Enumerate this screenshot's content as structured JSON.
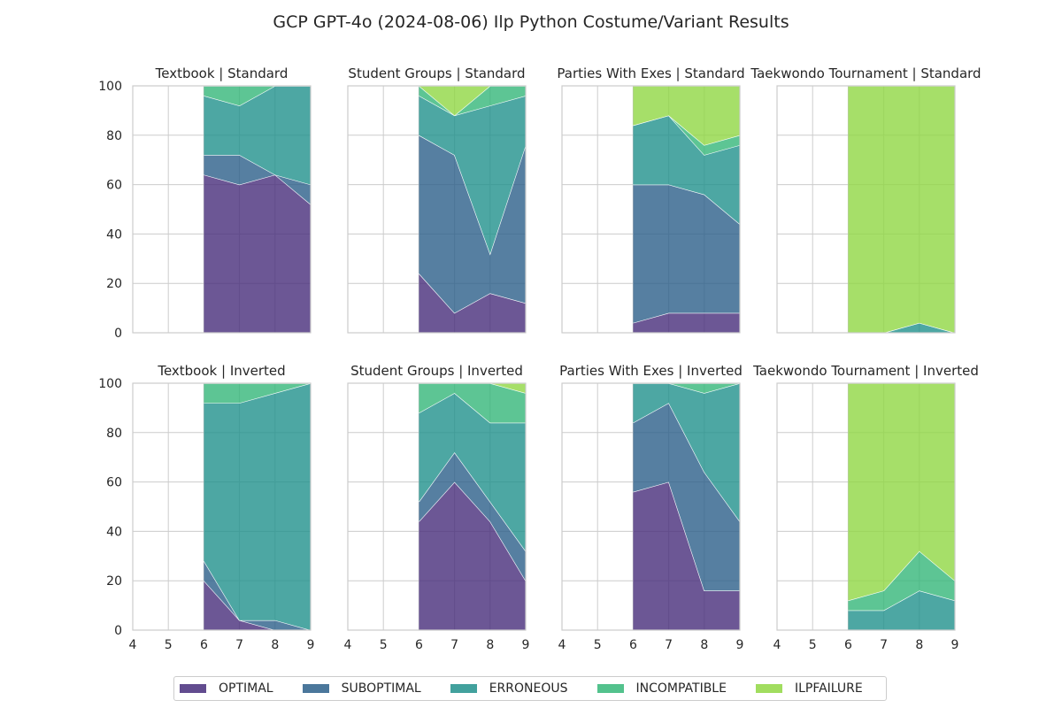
{
  "figure_title": "GCP GPT-4o (2024-08-06) Ilp Python Costume/Variant Results",
  "legend": [
    {
      "label": "OPTIMAL",
      "color": "#472d7b"
    },
    {
      "label": "SUBOPTIMAL",
      "color": "#2c5f8a"
    },
    {
      "label": "ERRONEOUS",
      "color": "#21918c"
    },
    {
      "label": "INCOMPATIBLE",
      "color": "#35b779"
    },
    {
      "label": "ILPFAILURE",
      "color": "#90d743"
    }
  ],
  "chart_data": [
    {
      "type": "area",
      "stacked": true,
      "title": "Textbook | Standard",
      "x": [
        6,
        7,
        8,
        9
      ],
      "xlim": [
        4,
        9
      ],
      "ylim": [
        0,
        100
      ],
      "grid": true,
      "xticks": [
        4,
        5,
        6,
        7,
        8,
        9
      ],
      "yticks": [
        0,
        20,
        40,
        60,
        80,
        100
      ],
      "series": [
        {
          "name": "OPTIMAL",
          "values": [
            64,
            60,
            64,
            52
          ]
        },
        {
          "name": "SUBOPTIMAL",
          "values": [
            8,
            12,
            0,
            8
          ]
        },
        {
          "name": "ERRONEOUS",
          "values": [
            24,
            20,
            36,
            40
          ]
        },
        {
          "name": "INCOMPATIBLE",
          "values": [
            4,
            8,
            0,
            0
          ]
        },
        {
          "name": "ILPFAILURE",
          "values": [
            0,
            0,
            0,
            0
          ]
        }
      ]
    },
    {
      "type": "area",
      "stacked": true,
      "title": "Student Groups | Standard",
      "x": [
        6,
        7,
        8,
        9
      ],
      "xlim": [
        4,
        9
      ],
      "ylim": [
        0,
        100
      ],
      "grid": true,
      "xticks": [
        4,
        5,
        6,
        7,
        8,
        9
      ],
      "yticks": [
        0,
        20,
        40,
        60,
        80,
        100
      ],
      "series": [
        {
          "name": "OPTIMAL",
          "values": [
            24,
            8,
            16,
            12
          ]
        },
        {
          "name": "SUBOPTIMAL",
          "values": [
            56,
            64,
            16,
            64
          ]
        },
        {
          "name": "ERRONEOUS",
          "values": [
            16,
            16,
            60,
            20
          ]
        },
        {
          "name": "INCOMPATIBLE",
          "values": [
            4,
            0,
            8,
            4
          ]
        },
        {
          "name": "ILPFAILURE",
          "values": [
            0,
            12,
            0,
            0
          ]
        }
      ]
    },
    {
      "type": "area",
      "stacked": true,
      "title": "Parties With Exes | Standard",
      "x": [
        6,
        7,
        8,
        9
      ],
      "xlim": [
        4,
        9
      ],
      "ylim": [
        0,
        100
      ],
      "grid": true,
      "xticks": [
        4,
        5,
        6,
        7,
        8,
        9
      ],
      "yticks": [
        0,
        20,
        40,
        60,
        80,
        100
      ],
      "series": [
        {
          "name": "OPTIMAL",
          "values": [
            4,
            8,
            8,
            8
          ]
        },
        {
          "name": "SUBOPTIMAL",
          "values": [
            56,
            52,
            48,
            36
          ]
        },
        {
          "name": "ERRONEOUS",
          "values": [
            24,
            28,
            16,
            32
          ]
        },
        {
          "name": "INCOMPATIBLE",
          "values": [
            0,
            0,
            4,
            4
          ]
        },
        {
          "name": "ILPFAILURE",
          "values": [
            16,
            12,
            24,
            20
          ]
        }
      ]
    },
    {
      "type": "area",
      "stacked": true,
      "title": "Taekwondo Tournament | Standard",
      "x": [
        6,
        7,
        8,
        9
      ],
      "xlim": [
        4,
        9
      ],
      "ylim": [
        0,
        100
      ],
      "grid": true,
      "xticks": [
        4,
        5,
        6,
        7,
        8,
        9
      ],
      "yticks": [
        0,
        20,
        40,
        60,
        80,
        100
      ],
      "series": [
        {
          "name": "OPTIMAL",
          "values": [
            0,
            0,
            0,
            0
          ]
        },
        {
          "name": "SUBOPTIMAL",
          "values": [
            0,
            0,
            0,
            0
          ]
        },
        {
          "name": "ERRONEOUS",
          "values": [
            0,
            0,
            4,
            0
          ]
        },
        {
          "name": "INCOMPATIBLE",
          "values": [
            0,
            0,
            0,
            0
          ]
        },
        {
          "name": "ILPFAILURE",
          "values": [
            100,
            100,
            96,
            100
          ]
        }
      ]
    },
    {
      "type": "area",
      "stacked": true,
      "title": "Textbook | Inverted",
      "x": [
        6,
        7,
        8,
        9
      ],
      "xlim": [
        4,
        9
      ],
      "ylim": [
        0,
        100
      ],
      "grid": true,
      "xticks": [
        4,
        5,
        6,
        7,
        8,
        9
      ],
      "yticks": [
        0,
        20,
        40,
        60,
        80,
        100
      ],
      "series": [
        {
          "name": "OPTIMAL",
          "values": [
            20,
            4,
            0,
            0
          ]
        },
        {
          "name": "SUBOPTIMAL",
          "values": [
            8,
            0,
            4,
            0
          ]
        },
        {
          "name": "ERRONEOUS",
          "values": [
            64,
            88,
            92,
            100
          ]
        },
        {
          "name": "INCOMPATIBLE",
          "values": [
            8,
            8,
            4,
            0
          ]
        },
        {
          "name": "ILPFAILURE",
          "values": [
            0,
            0,
            0,
            0
          ]
        }
      ]
    },
    {
      "type": "area",
      "stacked": true,
      "title": "Student Groups | Inverted",
      "x": [
        6,
        7,
        8,
        9
      ],
      "xlim": [
        4,
        9
      ],
      "ylim": [
        0,
        100
      ],
      "grid": true,
      "xticks": [
        4,
        5,
        6,
        7,
        8,
        9
      ],
      "yticks": [
        0,
        20,
        40,
        60,
        80,
        100
      ],
      "series": [
        {
          "name": "OPTIMAL",
          "values": [
            44,
            60,
            44,
            20
          ]
        },
        {
          "name": "SUBOPTIMAL",
          "values": [
            8,
            12,
            8,
            12
          ]
        },
        {
          "name": "ERRONEOUS",
          "values": [
            36,
            24,
            32,
            52
          ]
        },
        {
          "name": "INCOMPATIBLE",
          "values": [
            12,
            4,
            16,
            12
          ]
        },
        {
          "name": "ILPFAILURE",
          "values": [
            0,
            0,
            0,
            4
          ]
        }
      ]
    },
    {
      "type": "area",
      "stacked": true,
      "title": "Parties With Exes | Inverted",
      "x": [
        6,
        7,
        8,
        9
      ],
      "xlim": [
        4,
        9
      ],
      "ylim": [
        0,
        100
      ],
      "grid": true,
      "xticks": [
        4,
        5,
        6,
        7,
        8,
        9
      ],
      "yticks": [
        0,
        20,
        40,
        60,
        80,
        100
      ],
      "series": [
        {
          "name": "OPTIMAL",
          "values": [
            56,
            60,
            16,
            16
          ]
        },
        {
          "name": "SUBOPTIMAL",
          "values": [
            28,
            32,
            48,
            28
          ]
        },
        {
          "name": "ERRONEOUS",
          "values": [
            16,
            8,
            32,
            56
          ]
        },
        {
          "name": "INCOMPATIBLE",
          "values": [
            0,
            0,
            4,
            0
          ]
        },
        {
          "name": "ILPFAILURE",
          "values": [
            0,
            0,
            0,
            0
          ]
        }
      ]
    },
    {
      "type": "area",
      "stacked": true,
      "title": "Taekwondo Tournament | Inverted",
      "x": [
        6,
        7,
        8,
        9
      ],
      "xlim": [
        4,
        9
      ],
      "ylim": [
        0,
        100
      ],
      "grid": true,
      "xticks": [
        4,
        5,
        6,
        7,
        8,
        9
      ],
      "yticks": [
        0,
        20,
        40,
        60,
        80,
        100
      ],
      "series": [
        {
          "name": "OPTIMAL",
          "values": [
            0,
            0,
            0,
            0
          ]
        },
        {
          "name": "SUBOPTIMAL",
          "values": [
            0,
            0,
            0,
            0
          ]
        },
        {
          "name": "ERRONEOUS",
          "values": [
            8,
            8,
            16,
            12
          ]
        },
        {
          "name": "INCOMPATIBLE",
          "values": [
            4,
            8,
            16,
            8
          ]
        },
        {
          "name": "ILPFAILURE",
          "values": [
            88,
            84,
            68,
            80
          ]
        }
      ]
    }
  ]
}
